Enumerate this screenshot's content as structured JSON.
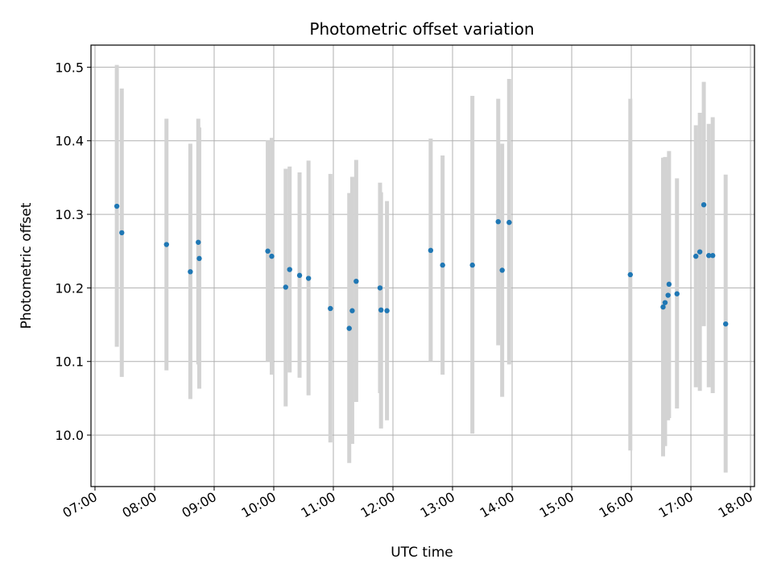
{
  "chart_data": {
    "type": "scatter",
    "title": "Photometric offset variation",
    "xlabel": "UTC time",
    "ylabel": "Photometric offset",
    "xlim": [
      6.933,
      18.067
    ],
    "ylim": [
      9.93,
      10.53
    ],
    "x_ticks": [
      {
        "value": 7,
        "label": "07:00"
      },
      {
        "value": 8,
        "label": "08:00"
      },
      {
        "value": 9,
        "label": "09:00"
      },
      {
        "value": 10,
        "label": "10:00"
      },
      {
        "value": 11,
        "label": "11:00"
      },
      {
        "value": 12,
        "label": "12:00"
      },
      {
        "value": 13,
        "label": "13:00"
      },
      {
        "value": 14,
        "label": "14:00"
      },
      {
        "value": 15,
        "label": "15:00"
      },
      {
        "value": 16,
        "label": "16:00"
      },
      {
        "value": 17,
        "label": "17:00"
      },
      {
        "value": 18,
        "label": "18:00"
      }
    ],
    "y_ticks": [
      {
        "value": 10.0,
        "label": "10.0"
      },
      {
        "value": 10.1,
        "label": "10.1"
      },
      {
        "value": 10.2,
        "label": "10.2"
      },
      {
        "value": 10.3,
        "label": "10.3"
      },
      {
        "value": 10.4,
        "label": "10.4"
      },
      {
        "value": 10.5,
        "label": "10.5"
      }
    ],
    "grid": true,
    "marker_color": "#1f77b4",
    "errorbar_color": "#d3d3d3",
    "points": [
      {
        "time": "07:22",
        "y": 10.311,
        "lo": 10.12,
        "hi": 10.503
      },
      {
        "time": "07:27",
        "y": 10.275,
        "lo": 10.079,
        "hi": 10.471
      },
      {
        "time": "08:12",
        "y": 10.259,
        "lo": 10.088,
        "hi": 10.43
      },
      {
        "time": "08:36",
        "y": 10.222,
        "lo": 10.049,
        "hi": 10.396
      },
      {
        "time": "08:44",
        "y": 10.262,
        "lo": 10.096,
        "hi": 10.43
      },
      {
        "time": "08:45",
        "y": 10.24,
        "lo": 10.063,
        "hi": 10.418
      },
      {
        "time": "09:54",
        "y": 10.25,
        "lo": 10.1,
        "hi": 10.401
      },
      {
        "time": "09:58",
        "y": 10.243,
        "lo": 10.082,
        "hi": 10.404
      },
      {
        "time": "10:12",
        "y": 10.201,
        "lo": 10.039,
        "hi": 10.362
      },
      {
        "time": "10:16",
        "y": 10.225,
        "lo": 10.085,
        "hi": 10.365
      },
      {
        "time": "10:26",
        "y": 10.217,
        "lo": 10.078,
        "hi": 10.357
      },
      {
        "time": "10:35",
        "y": 10.213,
        "lo": 10.054,
        "hi": 10.373
      },
      {
        "time": "10:57",
        "y": 10.172,
        "lo": 9.99,
        "hi": 10.355
      },
      {
        "time": "11:16",
        "y": 10.145,
        "lo": 9.962,
        "hi": 10.329
      },
      {
        "time": "11:19",
        "y": 10.169,
        "lo": 9.988,
        "hi": 10.351
      },
      {
        "time": "11:23",
        "y": 10.209,
        "lo": 10.045,
        "hi": 10.374
      },
      {
        "time": "11:47",
        "y": 10.2,
        "lo": 10.057,
        "hi": 10.343
      },
      {
        "time": "11:48",
        "y": 10.17,
        "lo": 10.009,
        "hi": 10.33
      },
      {
        "time": "11:54",
        "y": 10.169,
        "lo": 10.02,
        "hi": 10.318
      },
      {
        "time": "12:38",
        "y": 10.251,
        "lo": 10.1,
        "hi": 10.403
      },
      {
        "time": "12:50",
        "y": 10.231,
        "lo": 10.082,
        "hi": 10.38
      },
      {
        "time": "13:20",
        "y": 10.231,
        "lo": 10.002,
        "hi": 10.461
      },
      {
        "time": "13:46",
        "y": 10.29,
        "lo": 10.122,
        "hi": 10.457
      },
      {
        "time": "13:50",
        "y": 10.224,
        "lo": 10.052,
        "hi": 10.396
      },
      {
        "time": "13:57",
        "y": 10.289,
        "lo": 10.096,
        "hi": 10.484
      },
      {
        "time": "15:59",
        "y": 10.218,
        "lo": 9.979,
        "hi": 10.457
      },
      {
        "time": "16:32",
        "y": 10.174,
        "lo": 9.971,
        "hi": 10.377
      },
      {
        "time": "16:34",
        "y": 10.18,
        "lo": 9.985,
        "hi": 10.378
      },
      {
        "time": "16:37",
        "y": 10.19,
        "lo": 10.02,
        "hi": 10.36
      },
      {
        "time": "16:38",
        "y": 10.205,
        "lo": 10.023,
        "hi": 10.386
      },
      {
        "time": "16:46",
        "y": 10.192,
        "lo": 10.036,
        "hi": 10.349
      },
      {
        "time": "17:05",
        "y": 10.243,
        "lo": 10.065,
        "hi": 10.421
      },
      {
        "time": "17:09",
        "y": 10.249,
        "lo": 10.06,
        "hi": 10.438
      },
      {
        "time": "17:13",
        "y": 10.313,
        "lo": 10.148,
        "hi": 10.48
      },
      {
        "time": "17:18",
        "y": 10.244,
        "lo": 10.065,
        "hi": 10.423
      },
      {
        "time": "17:22",
        "y": 10.244,
        "lo": 10.057,
        "hi": 10.432
      },
      {
        "time": "17:35",
        "y": 10.151,
        "lo": 9.949,
        "hi": 10.354
      }
    ]
  }
}
